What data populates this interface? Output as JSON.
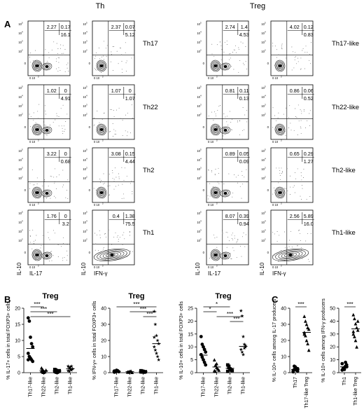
{
  "headers": {
    "th": "Th",
    "treg": "Treg"
  },
  "panel_letters": {
    "a": "A",
    "b": "B",
    "c": "C"
  },
  "flow_axes": {
    "tick": "10",
    "exp5": "5",
    "exp4": "4",
    "exp3": "3",
    "exp2": "2",
    "zero": "0",
    "zero_pair": "0 10",
    "y_label": "IL-10",
    "x_label_il17": "IL-17",
    "x_label_ifng": "IFN-γ"
  },
  "chart_data": [
    {
      "type": "flow_cytometry_grid",
      "columns": [
        "Th IL-17",
        "Th IFN-γ",
        "Treg IL-17",
        "Treg IFN-γ"
      ],
      "rows": [
        {
          "label_th": "Th17",
          "label_treg": "Th17-like",
          "quadrants": [
            [
              "2.27",
              "0.17",
              "16.1"
            ],
            [
              "2.37",
              "0.07",
              "5.12"
            ],
            [
              "2.74",
              "1.4",
              "4.53"
            ],
            [
              "4.02",
              "0.12",
              "0.83"
            ]
          ]
        },
        {
          "label_th": "Th22",
          "label_treg": "Th22-like",
          "quadrants": [
            [
              "1.02",
              "0",
              "4.91"
            ],
            [
              "1.07",
              "0",
              "1.07"
            ],
            [
              "0.81",
              "0.11",
              "0.13"
            ],
            [
              "0.86",
              "0.06",
              "0.52"
            ]
          ]
        },
        {
          "label_th": "Th2",
          "label_treg": "Th2-like",
          "quadrants": [
            [
              "3.22",
              "0",
              "0.68"
            ],
            [
              "3.08",
              "0.15",
              "4.44"
            ],
            [
              "0.89",
              "0.05",
              "0.09"
            ],
            [
              "0.65",
              "0.29",
              "1.27"
            ]
          ]
        },
        {
          "label_th": "Th1",
          "label_treg": "Th1-like",
          "quadrants": [
            [
              "1.76",
              "0",
              "3.2"
            ],
            [
              "0.4",
              "1.38",
              "75.5"
            ],
            [
              "8.07",
              "0.39",
              "0.94"
            ],
            [
              "2.56",
              "5.89",
              "16.0"
            ]
          ]
        }
      ]
    },
    {
      "type": "scatter",
      "title": "Treg",
      "ylabel": "% IL-17+ cells in total FOXP3+ cells",
      "ylim": [
        0,
        20
      ],
      "yticks": [
        "0",
        "5",
        "10",
        "15",
        "20"
      ],
      "categories": [
        "Th17-like",
        "Th22-like",
        "Th2-like",
        "Th1-like"
      ],
      "markers": [
        "circle",
        "triangle",
        "square",
        "star"
      ],
      "points": [
        [
          17,
          16,
          11,
          9,
          8,
          6,
          5,
          4.5,
          4,
          3.5,
          4
        ],
        [
          1.5,
          1,
          0.5,
          0.3,
          0.8,
          0.5,
          0.2,
          0.1
        ],
        [
          1,
          0.8,
          0.5,
          0.3,
          0.6,
          0.4,
          0.2,
          0.1,
          0.5
        ],
        [
          2,
          1.5,
          1,
          0.8,
          1.2,
          0.6,
          0.4,
          1.7,
          2
        ]
      ],
      "means": [
        7.5,
        0.6,
        0.5,
        1.2
      ],
      "significance": [
        {
          "pair": [
            0,
            1
          ],
          "label": "***"
        },
        {
          "pair": [
            0,
            2
          ],
          "label": "***"
        },
        {
          "pair": [
            0,
            3
          ],
          "label": "***"
        }
      ]
    },
    {
      "type": "scatter",
      "title": "Treg",
      "ylabel": "% IFN-γ+ cells in total FOXP3+ cells",
      "ylim": [
        0,
        40
      ],
      "yticks": [
        "0",
        "10",
        "20",
        "30",
        "40"
      ],
      "categories": [
        "Th17-like",
        "Th22-like",
        "Th2-like",
        "Th1-like"
      ],
      "markers": [
        "circle",
        "triangle",
        "square",
        "star"
      ],
      "points": [
        [
          1,
          0.5,
          0.8,
          1.2,
          0.6,
          0.3,
          0.9,
          1.5
        ],
        [
          0.5,
          0.3,
          0.8,
          1,
          0.2,
          0.4,
          0.6
        ],
        [
          0.5,
          1,
          0.8,
          0.3,
          0.6,
          1.2,
          0.4
        ],
        [
          38,
          30,
          23,
          20,
          18,
          16,
          14,
          12,
          10,
          8,
          22
        ]
      ],
      "means": [
        0.8,
        0.6,
        0.7,
        18
      ],
      "significance": [
        {
          "pair": [
            0,
            3
          ],
          "label": "***"
        },
        {
          "pair": [
            1,
            3
          ],
          "label": "***"
        },
        {
          "pair": [
            2,
            3
          ],
          "label": "***"
        }
      ]
    },
    {
      "type": "scatter",
      "title": "Treg",
      "ylabel": "% IL-10+ cells in total FOXP3+ cells",
      "ylim": [
        0,
        25
      ],
      "yticks": [
        "0",
        "5",
        "10",
        "15",
        "20",
        "25"
      ],
      "categories": [
        "Th17-like",
        "Th22-like",
        "Th2-like",
        "Th1-like"
      ],
      "markers": [
        "circle",
        "triangle",
        "square",
        "star"
      ],
      "points": [
        [
          14,
          11,
          10,
          9,
          8,
          7,
          6,
          5,
          4,
          3
        ],
        [
          5,
          3,
          2,
          1.5,
          1,
          0.8,
          0.5,
          3.5
        ],
        [
          3,
          2,
          1.5,
          1,
          0.8,
          0.5,
          2.5
        ],
        [
          24,
          22,
          14,
          11,
          10,
          9,
          8,
          7,
          9.5,
          10.5
        ]
      ],
      "means": [
        6.8,
        2.2,
        1.7,
        10.2
      ],
      "significance": [
        {
          "pair": [
            0,
            2
          ],
          "label": "*"
        },
        {
          "pair": [
            0,
            1
          ],
          "label": "*"
        },
        {
          "pair": [
            1,
            3
          ],
          "label": "***"
        },
        {
          "pair": [
            2,
            3
          ],
          "label": "***"
        }
      ]
    },
    {
      "type": "scatter",
      "title": "",
      "ylabel": "% IL-10+ cells among IL-17 producers",
      "ylim": [
        0,
        40
      ],
      "yticks": [
        "0",
        "10",
        "20",
        "30",
        "40"
      ],
      "categories": [
        "Th17",
        "Th17-like Treg"
      ],
      "markers": [
        "circle",
        "triangle"
      ],
      "points": [
        [
          1,
          2,
          3,
          1.5,
          2.5,
          0.5,
          4,
          3.5,
          2,
          1
        ],
        [
          35,
          32,
          30,
          28,
          27,
          25,
          23,
          20,
          18,
          14,
          24
        ]
      ],
      "means": [
        2,
        25
      ],
      "significance": [
        {
          "pair": [
            0,
            1
          ],
          "label": "***"
        }
      ]
    },
    {
      "type": "scatter",
      "title": "",
      "ylabel": "% IL-10+ cells among IFN-γ producers",
      "ylim": [
        0,
        50
      ],
      "yticks": [
        "0",
        "10",
        "20",
        "30",
        "40",
        "50"
      ],
      "categories": [
        "Th1",
        "Th1-like Treg"
      ],
      "markers": [
        "circle",
        "triangle"
      ],
      "points": [
        [
          2,
          3,
          4,
          5,
          6,
          7,
          3.5,
          2.5,
          8,
          4.5
        ],
        [
          45,
          42,
          38,
          35,
          33,
          30,
          28,
          25,
          20,
          40,
          32
        ]
      ],
      "means": [
        4.5,
        34
      ],
      "significance": [
        {
          "pair": [
            0,
            1
          ],
          "label": "***"
        }
      ]
    }
  ]
}
